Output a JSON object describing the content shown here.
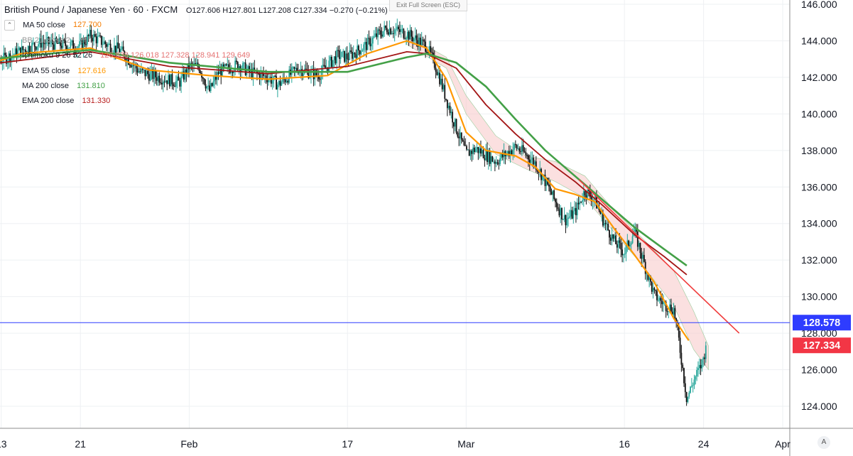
{
  "header": {
    "title": "British Pound / Japanese Yen · 60 · FXCM",
    "ohlc": "O127.606  H127.801  L127.208  C127.334  −0.270 (−0.21%)",
    "exit_label": "Exit Full Screen (ESC)"
  },
  "indicators": [
    {
      "name": "MA 50 close",
      "value": "127.700",
      "color": "#f57c00"
    },
    {
      "name": "BB 21 close 2",
      "value": "",
      "color": "#b0b0b0"
    },
    {
      "name": "Ichimoku 9 26 52 26",
      "value": "126.838  126.018  127.328  128.941  129.649",
      "color": "#e57373"
    },
    {
      "name": "EMA 55 close",
      "value": "127.616",
      "color": "#ff9800"
    },
    {
      "name": "MA 200 close",
      "value": "131.810",
      "color": "#43a047"
    },
    {
      "name": "EMA 200 close",
      "value": "131.330",
      "color": "#b71c1c"
    }
  ],
  "colors": {
    "candle_up": "#26a69a",
    "candle_down": "#111111",
    "ema55": "#ff9800",
    "ma200": "#43a047",
    "ema200": "#a31515",
    "trendline": "#f03c3c",
    "hline": "#2e3cff",
    "price_label": "#f23645",
    "cloud": "#f8c6c6",
    "grid": "#eef0f3"
  },
  "chart_data": {
    "type": "line",
    "title": "British Pound / Japanese Yen · 60 · FXCM",
    "x_tick_labels": [
      "13",
      "21",
      "Feb",
      "17",
      "Mar",
      "16",
      "24",
      "Apr"
    ],
    "y_tick_labels": [
      "124.000",
      "126.000",
      "128.000",
      "130.000",
      "132.000",
      "134.000",
      "136.000",
      "138.000",
      "140.000",
      "142.000",
      "144.000",
      "146.000"
    ],
    "ylim": [
      122.9,
      146.2
    ],
    "x_domain_days": [
      0,
      82
    ],
    "x_tick_days": [
      3,
      11,
      22,
      38,
      50,
      66,
      74,
      82
    ],
    "grid": true,
    "horizontal_line": {
      "value": 128.578,
      "label": "128.578"
    },
    "last_price": {
      "value": 127.334,
      "label": "127.334"
    },
    "price_path": [
      [
        0,
        142.3
      ],
      [
        2,
        142.7
      ],
      [
        4,
        143.2
      ],
      [
        6,
        143.7
      ],
      [
        7,
        143.9
      ],
      [
        9,
        143.8
      ],
      [
        11,
        143.7
      ],
      [
        12,
        144.3
      ],
      [
        14,
        143.7
      ],
      [
        15,
        143.5
      ],
      [
        17,
        142.3
      ],
      [
        19,
        142.0
      ],
      [
        21,
        141.7
      ],
      [
        22,
        142.6
      ],
      [
        23,
        142.6
      ],
      [
        24,
        141.2
      ],
      [
        25,
        142.3
      ],
      [
        27,
        142.7
      ],
      [
        28,
        142.3
      ],
      [
        30,
        142.0
      ],
      [
        31,
        141.6
      ],
      [
        33,
        142.5
      ],
      [
        35,
        142.1
      ],
      [
        37,
        143.2
      ],
      [
        38,
        143.1
      ],
      [
        40,
        143.8
      ],
      [
        41,
        144.3
      ],
      [
        42,
        144.7
      ],
      [
        44,
        144.4
      ],
      [
        46,
        143.7
      ],
      [
        47,
        142.5
      ],
      [
        48,
        140.8
      ],
      [
        49,
        139.2
      ],
      [
        50,
        137.8
      ],
      [
        51,
        138.1
      ],
      [
        53,
        137.4
      ],
      [
        55,
        138.2
      ],
      [
        56,
        137.8
      ],
      [
        57,
        137.3
      ],
      [
        58,
        136.3
      ],
      [
        59,
        135.2
      ],
      [
        60,
        134.2
      ],
      [
        61,
        134.6
      ],
      [
        62,
        135.8
      ],
      [
        63,
        135.3
      ],
      [
        64,
        134.0
      ],
      [
        65,
        133.0
      ],
      [
        66,
        132.4
      ],
      [
        67,
        133.6
      ],
      [
        68,
        131.8
      ],
      [
        69,
        130.1
      ],
      [
        70,
        129.6
      ],
      [
        71,
        129.3
      ],
      [
        71.5,
        127.6
      ],
      [
        72.3,
        124.4
      ],
      [
        73,
        125.4
      ],
      [
        73.8,
        126.3
      ],
      [
        74.3,
        127.3
      ]
    ],
    "series": [
      {
        "name": "EMA 55 close",
        "points": [
          [
            0,
            142.4
          ],
          [
            5,
            143.3
          ],
          [
            12,
            143.6
          ],
          [
            18,
            142.4
          ],
          [
            24,
            142.1
          ],
          [
            30,
            141.9
          ],
          [
            36,
            142.1
          ],
          [
            40,
            143.3
          ],
          [
            44,
            144.0
          ],
          [
            46,
            143.6
          ],
          [
            48,
            141.9
          ],
          [
            50,
            139.0
          ],
          [
            52,
            138.0
          ],
          [
            55,
            137.7
          ],
          [
            57,
            137.1
          ],
          [
            59,
            135.9
          ],
          [
            61,
            135.6
          ],
          [
            63,
            135.2
          ],
          [
            65,
            133.7
          ],
          [
            67,
            132.3
          ],
          [
            69,
            130.8
          ],
          [
            71,
            128.8
          ],
          [
            72.5,
            127.6
          ]
        ]
      },
      {
        "name": "EMA 200 close",
        "points": [
          [
            0,
            142.6
          ],
          [
            12,
            143.4
          ],
          [
            20,
            142.6
          ],
          [
            30,
            142.2
          ],
          [
            38,
            142.6
          ],
          [
            44,
            143.4
          ],
          [
            46,
            143.3
          ],
          [
            49,
            142.5
          ],
          [
            52,
            140.5
          ],
          [
            55,
            138.9
          ],
          [
            58,
            137.5
          ],
          [
            61,
            136.3
          ],
          [
            64,
            134.9
          ],
          [
            67,
            133.4
          ],
          [
            70,
            132.2
          ],
          [
            72.3,
            131.2
          ]
        ]
      },
      {
        "name": "MA 200 close",
        "points": [
          [
            0,
            142.9
          ],
          [
            12,
            143.5
          ],
          [
            20,
            142.8
          ],
          [
            30,
            142.3
          ],
          [
            38,
            142.3
          ],
          [
            44,
            143.1
          ],
          [
            46,
            143.3
          ],
          [
            49,
            142.8
          ],
          [
            52,
            141.5
          ],
          [
            55,
            139.7
          ],
          [
            58,
            138.0
          ],
          [
            61,
            136.6
          ],
          [
            64,
            135.2
          ],
          [
            67,
            133.8
          ],
          [
            70,
            132.6
          ],
          [
            72.3,
            131.7
          ]
        ]
      }
    ],
    "cloud_band": [
      [
        [
          44,
          144.3
        ],
        [
          48,
          143.1
        ],
        [
          50,
          141.0
        ],
        [
          53,
          138.8
        ],
        [
          56,
          137.7
        ],
        [
          59,
          137.4
        ],
        [
          62,
          136.6
        ],
        [
          65,
          134.7
        ],
        [
          68,
          133.1
        ],
        [
          71,
          131.4
        ],
        [
          73,
          129.2
        ],
        [
          74.5,
          127.3
        ]
      ],
      [
        [
          44,
          143.8
        ],
        [
          48,
          142.5
        ],
        [
          50,
          140.0
        ],
        [
          53,
          137.8
        ],
        [
          56,
          137.0
        ],
        [
          59,
          136.3
        ],
        [
          62,
          135.4
        ],
        [
          65,
          133.5
        ],
        [
          68,
          131.6
        ],
        [
          71,
          129.5
        ],
        [
          73,
          127.1
        ],
        [
          74.5,
          126.0
        ]
      ]
    ],
    "trendline": [
      [
        61.4,
        136.4
      ],
      [
        77.6,
        128.0
      ]
    ]
  }
}
